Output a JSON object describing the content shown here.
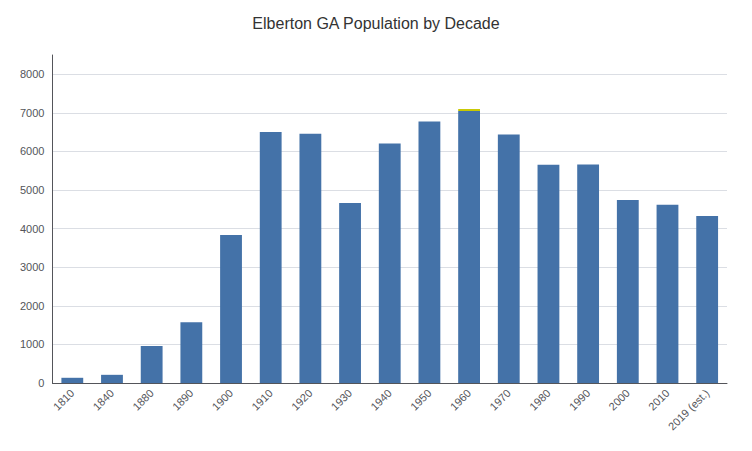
{
  "chart_data": {
    "type": "bar",
    "title": "Elberton GA Population by Decade",
    "categories": [
      "1810",
      "1840",
      "1880",
      "1890",
      "1900",
      "1910",
      "1920",
      "1930",
      "1940",
      "1950",
      "1960",
      "1970",
      "1980",
      "1990",
      "2000",
      "2010",
      "2019 (est.)"
    ],
    "series": [
      {
        "color": "#4472a8",
        "values": [
          136,
          213,
          960,
          1574,
          3835,
          6508,
          6458,
          4667,
          6204,
          6777,
          7049,
          6437,
          5654,
          5660,
          4743,
          4618,
          4330
        ]
      },
      {
        "color": "#c8c800",
        "values": [
          null,
          null,
          null,
          null,
          null,
          null,
          null,
          null,
          null,
          null,
          51,
          null,
          null,
          null,
          null,
          null,
          null
        ]
      }
    ],
    "stacked": true,
    "ylim": [
      0,
      8500
    ],
    "yticks": [
      0,
      1000,
      2000,
      3000,
      4000,
      5000,
      6000,
      7000,
      8000
    ],
    "grid": true
  }
}
